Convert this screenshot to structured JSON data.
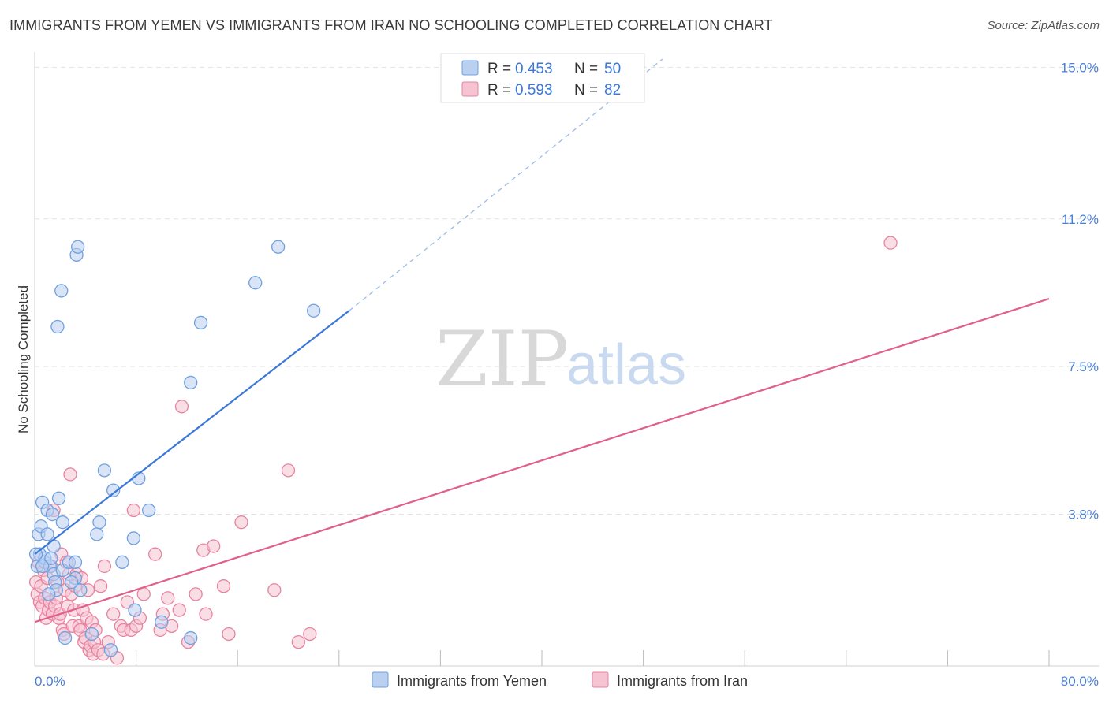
{
  "header": {
    "title": "IMMIGRANTS FROM YEMEN VS IMMIGRANTS FROM IRAN NO SCHOOLING COMPLETED CORRELATION CHART",
    "source": "Source: ZipAtlas.com"
  },
  "watermark": {
    "part1": "ZIP",
    "part2": "atlas"
  },
  "legend": {
    "series": [
      {
        "r_label": "R =",
        "r_value": "0.453",
        "n_label": "N =",
        "n_value": "50",
        "color": "#6fa0e0",
        "fill": "#b9d0f1"
      },
      {
        "r_label": "R =",
        "r_value": "0.593",
        "n_label": "N =",
        "n_value": "82",
        "color": "#e8839f",
        "fill": "#f6c3d2"
      }
    ]
  },
  "bottom_legend": {
    "items": [
      {
        "label": "Immigrants from Yemen",
        "color": "#6fa0e0",
        "fill": "#b9d0f1"
      },
      {
        "label": "Immigrants from Iran",
        "color": "#e8839f",
        "fill": "#f6c3d2"
      }
    ]
  },
  "chart_data": {
    "type": "scatter",
    "title": "IMMIGRANTS FROM YEMEN VS IMMIGRANTS FROM IRAN NO SCHOOLING COMPLETED CORRELATION CHART",
    "xlabel": "",
    "ylabel": "No Schooling Completed",
    "xlim": [
      0,
      80
    ],
    "ylim": [
      0,
      15.5
    ],
    "x_tick_labels": [
      "0.0%",
      "80.0%"
    ],
    "y_ticks": [
      3.8,
      7.5,
      11.2,
      15.0
    ],
    "y_tick_labels": [
      "3.8%",
      "7.5%",
      "11.2%",
      "15.0%"
    ],
    "grid": true,
    "legend_position": "top-center",
    "series": [
      {
        "name": "Immigrants from Yemen",
        "color": "#3b78d8",
        "marker_stroke": "#6fa0e0",
        "marker_fill": "#b9d0f1",
        "points": [
          [
            0.2,
            2.5
          ],
          [
            0.3,
            3.3
          ],
          [
            0.4,
            2.8
          ],
          [
            0.5,
            3.5
          ],
          [
            0.6,
            4.1
          ],
          [
            0.8,
            2.6
          ],
          [
            0.8,
            2.7
          ],
          [
            1.0,
            3.3
          ],
          [
            1.0,
            3.9
          ],
          [
            1.2,
            2.5
          ],
          [
            1.3,
            2.7
          ],
          [
            1.4,
            3.8
          ],
          [
            1.5,
            2.3
          ],
          [
            1.5,
            3.0
          ],
          [
            1.6,
            2.1
          ],
          [
            1.7,
            1.9
          ],
          [
            1.8,
            8.5
          ],
          [
            1.9,
            4.2
          ],
          [
            2.1,
            9.4
          ],
          [
            2.2,
            2.4
          ],
          [
            2.2,
            3.6
          ],
          [
            2.4,
            0.7
          ],
          [
            2.7,
            2.6
          ],
          [
            3.2,
            2.2
          ],
          [
            3.2,
            2.6
          ],
          [
            3.3,
            10.3
          ],
          [
            3.4,
            10.5
          ],
          [
            3.6,
            1.9
          ],
          [
            4.5,
            0.8
          ],
          [
            4.9,
            3.3
          ],
          [
            5.1,
            3.6
          ],
          [
            5.5,
            4.9
          ],
          [
            6.0,
            0.4
          ],
          [
            6.2,
            4.4
          ],
          [
            6.9,
            2.6
          ],
          [
            7.8,
            3.2
          ],
          [
            7.9,
            1.4
          ],
          [
            8.2,
            4.7
          ],
          [
            9.0,
            3.9
          ],
          [
            10.0,
            1.1
          ],
          [
            12.3,
            0.7
          ],
          [
            12.3,
            7.1
          ],
          [
            13.1,
            8.6
          ],
          [
            17.4,
            9.6
          ],
          [
            19.2,
            10.5
          ],
          [
            22.0,
            8.9
          ],
          [
            0.1,
            2.8
          ],
          [
            0.6,
            2.5
          ],
          [
            2.9,
            2.1
          ],
          [
            1.1,
            1.8
          ]
        ],
        "trend": {
          "x0": 0,
          "y0": 2.8,
          "x1": 24.8,
          "y1": 8.9,
          "dash_x1": 49.5,
          "dash_y1": 15.2
        }
      },
      {
        "name": "Immigrants from Iran",
        "color": "#e0608a",
        "marker_stroke": "#e8839f",
        "marker_fill": "#f6c3d2",
        "points": [
          [
            0.1,
            2.1
          ],
          [
            0.2,
            1.8
          ],
          [
            0.3,
            2.6
          ],
          [
            0.4,
            1.6
          ],
          [
            0.5,
            2.0
          ],
          [
            0.6,
            1.5
          ],
          [
            0.7,
            2.4
          ],
          [
            0.8,
            1.7
          ],
          [
            0.9,
            1.2
          ],
          [
            1.0,
            2.2
          ],
          [
            1.1,
            1.4
          ],
          [
            1.2,
            1.6
          ],
          [
            1.3,
            2.5
          ],
          [
            1.4,
            1.3
          ],
          [
            1.5,
            3.9
          ],
          [
            1.6,
            1.5
          ],
          [
            1.7,
            1.7
          ],
          [
            1.8,
            2.1
          ],
          [
            1.9,
            1.2
          ],
          [
            2.0,
            1.3
          ],
          [
            2.1,
            2.8
          ],
          [
            2.2,
            0.9
          ],
          [
            2.3,
            0.8
          ],
          [
            2.4,
            1.9
          ],
          [
            2.5,
            2.6
          ],
          [
            2.6,
            1.5
          ],
          [
            2.7,
            2.3
          ],
          [
            2.8,
            4.8
          ],
          [
            2.9,
            1.8
          ],
          [
            3.0,
            1.0
          ],
          [
            3.1,
            1.4
          ],
          [
            3.2,
            2.0
          ],
          [
            3.3,
            2.3
          ],
          [
            3.5,
            1.0
          ],
          [
            3.6,
            0.9
          ],
          [
            3.7,
            2.2
          ],
          [
            3.8,
            1.4
          ],
          [
            3.9,
            0.6
          ],
          [
            4.0,
            0.7
          ],
          [
            4.1,
            1.2
          ],
          [
            4.2,
            1.9
          ],
          [
            4.3,
            0.4
          ],
          [
            4.4,
            0.5
          ],
          [
            4.5,
            1.1
          ],
          [
            4.6,
            0.3
          ],
          [
            4.7,
            0.6
          ],
          [
            4.8,
            0.9
          ],
          [
            5.0,
            0.4
          ],
          [
            5.2,
            2.0
          ],
          [
            5.4,
            0.3
          ],
          [
            5.5,
            2.5
          ],
          [
            5.8,
            0.6
          ],
          [
            6.2,
            1.3
          ],
          [
            6.5,
            0.2
          ],
          [
            6.8,
            1.0
          ],
          [
            7.0,
            0.9
          ],
          [
            7.3,
            1.6
          ],
          [
            7.6,
            0.9
          ],
          [
            7.8,
            3.9
          ],
          [
            8.0,
            1.0
          ],
          [
            8.3,
            1.2
          ],
          [
            8.6,
            1.8
          ],
          [
            9.5,
            2.8
          ],
          [
            9.9,
            0.9
          ],
          [
            10.1,
            1.3
          ],
          [
            10.5,
            1.7
          ],
          [
            10.8,
            1.0
          ],
          [
            11.4,
            1.4
          ],
          [
            11.6,
            6.5
          ],
          [
            12.1,
            0.6
          ],
          [
            12.7,
            1.8
          ],
          [
            13.3,
            2.9
          ],
          [
            13.5,
            1.3
          ],
          [
            14.1,
            3.0
          ],
          [
            14.9,
            2.0
          ],
          [
            15.3,
            0.8
          ],
          [
            16.3,
            3.6
          ],
          [
            18.9,
            1.9
          ],
          [
            20.0,
            4.9
          ],
          [
            20.8,
            0.6
          ],
          [
            21.7,
            0.8
          ],
          [
            67.5,
            10.6
          ]
        ],
        "trend": {
          "x0": 0,
          "y0": 1.1,
          "x1": 80,
          "y1": 9.2
        }
      }
    ]
  }
}
